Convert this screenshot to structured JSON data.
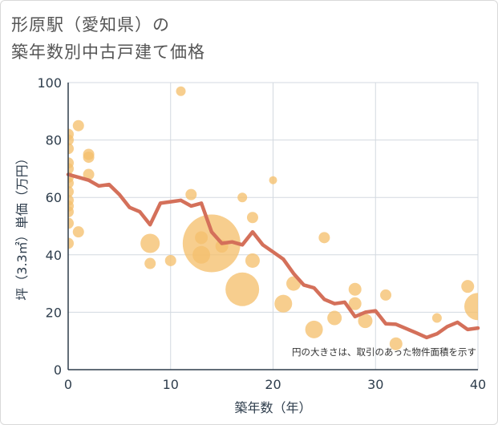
{
  "title_lines": [
    "形原駅（愛知県）の",
    "築年数別中古戸建て価格"
  ],
  "chart_data": {
    "type": "scatter+line",
    "title": "形原駅（愛知県）の築年数別中古戸建て価格",
    "xlabel": "築年数（年）",
    "ylabel": "坪（3.3㎡）単価（万円）",
    "xlim": [
      0,
      40
    ],
    "ylim": [
      0,
      100
    ],
    "xticks": [
      0,
      10,
      20,
      30,
      40
    ],
    "yticks": [
      0,
      20,
      40,
      60,
      80,
      100
    ],
    "grid": true,
    "note": "円の大きさは、取引のあった物件面積を示す",
    "bubble_color": "#f5c06e",
    "line_color": "#d4705a",
    "bubbles": [
      {
        "x": 0,
        "y": 82,
        "s": 7
      },
      {
        "x": 0,
        "y": 80,
        "s": 7
      },
      {
        "x": 0,
        "y": 77,
        "s": 7
      },
      {
        "x": 0,
        "y": 72,
        "s": 7
      },
      {
        "x": 0,
        "y": 70,
        "s": 7
      },
      {
        "x": 0,
        "y": 67,
        "s": 7
      },
      {
        "x": 0,
        "y": 65,
        "s": 7
      },
      {
        "x": 0,
        "y": 62,
        "s": 7
      },
      {
        "x": 0,
        "y": 59,
        "s": 7
      },
      {
        "x": 0,
        "y": 57,
        "s": 7
      },
      {
        "x": 0,
        "y": 55,
        "s": 7
      },
      {
        "x": 0,
        "y": 51,
        "s": 7
      },
      {
        "x": 0,
        "y": 44,
        "s": 7
      },
      {
        "x": 1,
        "y": 85,
        "s": 7
      },
      {
        "x": 1,
        "y": 48,
        "s": 7
      },
      {
        "x": 2,
        "y": 75,
        "s": 7
      },
      {
        "x": 2,
        "y": 74,
        "s": 7
      },
      {
        "x": 2,
        "y": 68,
        "s": 7
      },
      {
        "x": 8,
        "y": 44,
        "s": 12
      },
      {
        "x": 8,
        "y": 37,
        "s": 7
      },
      {
        "x": 10,
        "y": 38,
        "s": 7
      },
      {
        "x": 11,
        "y": 97,
        "s": 6
      },
      {
        "x": 12,
        "y": 61,
        "s": 7
      },
      {
        "x": 13,
        "y": 46,
        "s": 8
      },
      {
        "x": 13,
        "y": 40,
        "s": 11
      },
      {
        "x": 14,
        "y": 44,
        "s": 36
      },
      {
        "x": 15,
        "y": 43,
        "s": 8
      },
      {
        "x": 17,
        "y": 60,
        "s": 6
      },
      {
        "x": 17,
        "y": 28,
        "s": 21
      },
      {
        "x": 18,
        "y": 53,
        "s": 7
      },
      {
        "x": 18,
        "y": 38,
        "s": 9
      },
      {
        "x": 20,
        "y": 66,
        "s": 5
      },
      {
        "x": 21,
        "y": 23,
        "s": 11
      },
      {
        "x": 22,
        "y": 30,
        "s": 9
      },
      {
        "x": 24,
        "y": 14,
        "s": 11
      },
      {
        "x": 25,
        "y": 46,
        "s": 7
      },
      {
        "x": 26,
        "y": 18,
        "s": 9
      },
      {
        "x": 28,
        "y": 28,
        "s": 8
      },
      {
        "x": 28,
        "y": 23,
        "s": 8
      },
      {
        "x": 29,
        "y": 17,
        "s": 9
      },
      {
        "x": 31,
        "y": 26,
        "s": 7
      },
      {
        "x": 32,
        "y": 9,
        "s": 8
      },
      {
        "x": 36,
        "y": 18,
        "s": 6
      },
      {
        "x": 39,
        "y": 29,
        "s": 8
      },
      {
        "x": 40,
        "y": 22,
        "s": 17
      }
    ],
    "line": {
      "x": [
        0,
        1,
        2,
        3,
        4,
        5,
        6,
        7,
        8,
        9,
        10,
        11,
        12,
        13,
        14,
        15,
        16,
        17,
        18,
        19,
        20,
        21,
        22,
        23,
        24,
        25,
        26,
        27,
        28,
        29,
        30,
        31,
        32,
        33,
        34,
        35,
        36,
        37,
        38,
        39,
        40
      ],
      "y": [
        68,
        67,
        66,
        64,
        64.5,
        61,
        56.5,
        55,
        50.5,
        58,
        58.5,
        59,
        57,
        58,
        48,
        44,
        44.5,
        43.5,
        48,
        43.5,
        41,
        38.5,
        33.5,
        29.5,
        28.5,
        24.5,
        23,
        23.5,
        18.5,
        20,
        20.5,
        16,
        15.8,
        14.3,
        12.8,
        11.2,
        12.5,
        15,
        16.5,
        14,
        14.5
      ]
    }
  }
}
